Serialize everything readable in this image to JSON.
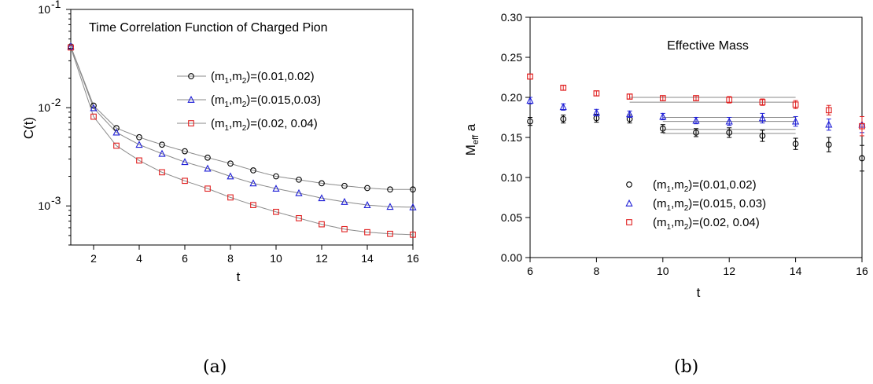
{
  "panels": {
    "a": {
      "caption": "(a)"
    },
    "b": {
      "caption": "(b)"
    }
  },
  "chart_data": [
    {
      "type": "scatter",
      "title": "Time Correlation Function of Charged Pion",
      "xlabel": "t",
      "ylabel": "C(t)",
      "xlim": [
        1,
        16
      ],
      "ylim": [
        0.0004,
        0.1
      ],
      "yscale": "log",
      "xticks": [
        "2",
        "4",
        "6",
        "8",
        "10",
        "12",
        "14",
        "16"
      ],
      "yticks": [
        {
          "value": 0.1,
          "base": "10",
          "exp": "-1"
        },
        {
          "value": 0.01,
          "base": "10",
          "exp": "-2"
        },
        {
          "value": 0.001,
          "base": "10",
          "exp": "-3"
        }
      ],
      "grid": false,
      "legend_position": "upper-right",
      "series": [
        {
          "label_main": "(m",
          "label_rest": ",m",
          "label_sub1": "1",
          "label_sub2": "2",
          "label_tail": ")=(0.01,0.02)",
          "color": "#000000",
          "marker": "circle",
          "x": [
            1,
            2,
            3,
            4,
            5,
            6,
            7,
            8,
            9,
            10,
            11,
            12,
            13,
            14,
            15,
            16
          ],
          "y": [
            0.042,
            0.0105,
            0.0062,
            0.005,
            0.0042,
            0.0036,
            0.0031,
            0.0027,
            0.0023,
            0.002,
            0.00185,
            0.0017,
            0.0016,
            0.00152,
            0.00147,
            0.00147
          ]
        },
        {
          "label_main": "(m",
          "label_rest": ",m",
          "label_sub1": "1",
          "label_sub2": "2",
          "label_tail": ")=(0.015,0.03)",
          "color": "#1f1fd6",
          "marker": "triangle",
          "x": [
            1,
            2,
            3,
            4,
            5,
            6,
            7,
            8,
            9,
            10,
            11,
            12,
            13,
            14,
            15,
            16
          ],
          "y": [
            0.042,
            0.0099,
            0.0056,
            0.0042,
            0.0034,
            0.0028,
            0.0024,
            0.002,
            0.0017,
            0.0015,
            0.00135,
            0.0012,
            0.0011,
            0.00102,
            0.00098,
            0.00097
          ]
        },
        {
          "label_main": "(m",
          "label_rest": ",m",
          "label_sub1": "1",
          "label_sub2": "2",
          "label_tail": ")=(0.02, 0.04)",
          "color": "#e02020",
          "marker": "square",
          "x": [
            1,
            2,
            3,
            4,
            5,
            6,
            7,
            8,
            9,
            10,
            11,
            12,
            13,
            14,
            15,
            16
          ],
          "y": [
            0.041,
            0.0081,
            0.0041,
            0.0029,
            0.0022,
            0.0018,
            0.0015,
            0.00122,
            0.00102,
            0.00087,
            0.00075,
            0.00065,
            0.00058,
            0.00054,
            0.00052,
            0.00051
          ]
        }
      ]
    },
    {
      "type": "scatter",
      "title": "Effective Mass",
      "xlabel": "t",
      "ylabel_main": "M",
      "ylabel_sub": "eff",
      "ylabel_tail": " a",
      "xlim": [
        6,
        16
      ],
      "ylim": [
        0,
        0.3
      ],
      "xticks": [
        "6",
        "8",
        "10",
        "12",
        "14",
        "16"
      ],
      "yticks": [
        "0.00",
        "0.05",
        "0.10",
        "0.15",
        "0.20",
        "0.25",
        "0.30"
      ],
      "grid": false,
      "legend_position": "lower-center",
      "series": [
        {
          "label_main": "(m",
          "label_rest": ",m",
          "label_sub1": "1",
          "label_sub2": "2",
          "label_tail": ")=(0.01,0.02)",
          "color": "#000000",
          "marker": "circle",
          "x": [
            6,
            7,
            8,
            9,
            10,
            11,
            12,
            13,
            14,
            15,
            16
          ],
          "y": [
            0.17,
            0.173,
            0.174,
            0.173,
            0.161,
            0.156,
            0.156,
            0.152,
            0.142,
            0.141,
            0.124
          ],
          "err": [
            0.005,
            0.005,
            0.005,
            0.005,
            0.005,
            0.005,
            0.006,
            0.007,
            0.007,
            0.009,
            0.016
          ],
          "fit": {
            "x": [
              10,
              14
            ],
            "y": [
              0.155,
              0.16
            ]
          }
        },
        {
          "label_main": "(m",
          "label_rest": ",m",
          "label_sub1": "1",
          "label_sub2": "2",
          "label_tail": ")=(0.015, 0.03)",
          "color": "#1f1fd6",
          "marker": "triangle",
          "x": [
            6,
            7,
            8,
            9,
            10,
            11,
            12,
            13,
            14,
            15,
            16
          ],
          "y": [
            0.196,
            0.188,
            0.181,
            0.179,
            0.176,
            0.171,
            0.17,
            0.174,
            0.17,
            0.166,
            0.166
          ],
          "err": [
            0.004,
            0.004,
            0.004,
            0.004,
            0.004,
            0.004,
            0.005,
            0.006,
            0.006,
            0.007,
            0.01
          ],
          "fit": {
            "x": [
              10,
              14
            ],
            "y": [
              0.17,
              0.175
            ]
          }
        },
        {
          "label_main": "(m",
          "label_rest": ",m",
          "label_sub1": "1",
          "label_sub2": "2",
          "label_tail": ")=(0.02, 0.04)",
          "color": "#e02020",
          "marker": "square",
          "x": [
            6,
            7,
            8,
            9,
            10,
            11,
            12,
            13,
            14,
            15,
            16
          ],
          "y": [
            0.226,
            0.212,
            0.205,
            0.201,
            0.199,
            0.199,
            0.197,
            0.194,
            0.191,
            0.184,
            0.164
          ],
          "err": [
            0.003,
            0.003,
            0.003,
            0.003,
            0.003,
            0.003,
            0.004,
            0.004,
            0.005,
            0.006,
            0.012
          ],
          "fit": {
            "x": [
              9,
              14
            ],
            "y": [
              0.194,
              0.2
            ]
          }
        }
      ]
    }
  ]
}
